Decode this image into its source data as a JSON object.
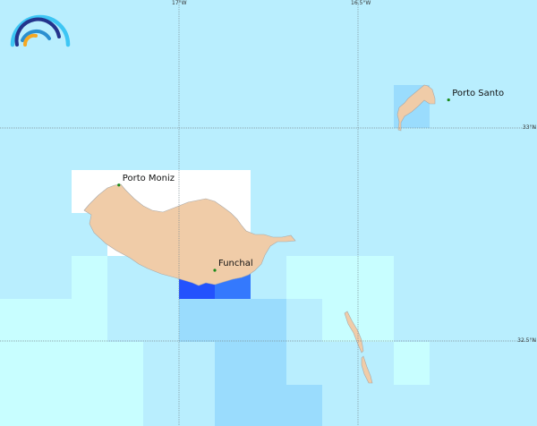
{
  "map": {
    "background": "#b9eefe",
    "land_color": "#f0cca8",
    "land_stroke": "#a9a9a9",
    "place_dot_color": "#1a8a1a",
    "extent": {
      "lon": [
        -17.5,
        -16.0
      ],
      "lat": [
        32.26,
        33.35
      ]
    },
    "graticule": {
      "meridians": [
        {
          "lon": -17.0,
          "label": "17°W"
        },
        {
          "lon": -16.5,
          "label": "16.5°W"
        }
      ],
      "parallels": [
        {
          "lat": 33.0,
          "label": "33°N"
        },
        {
          "lat": 32.5,
          "label": "32.5°N"
        }
      ]
    },
    "places": [
      {
        "name": "Porto Moniz",
        "lon": -17.168,
        "lat": 32.866
      },
      {
        "name": "Funchal",
        "lon": -16.9,
        "lat": 32.666
      },
      {
        "name": "Porto Santo",
        "lon": -16.247,
        "lat": 33.066
      }
    ],
    "grid_colors": {
      "white": "#ffffff",
      "pale_cyan": "#c8feff",
      "mid_blue": "#9adcfd",
      "blue": "#3479fd",
      "deep_blue": "#2352fd"
    },
    "logo_colors": [
      "#3ec6f4",
      "#24348c",
      "#2a8fd0",
      "#f6a823"
    ]
  }
}
